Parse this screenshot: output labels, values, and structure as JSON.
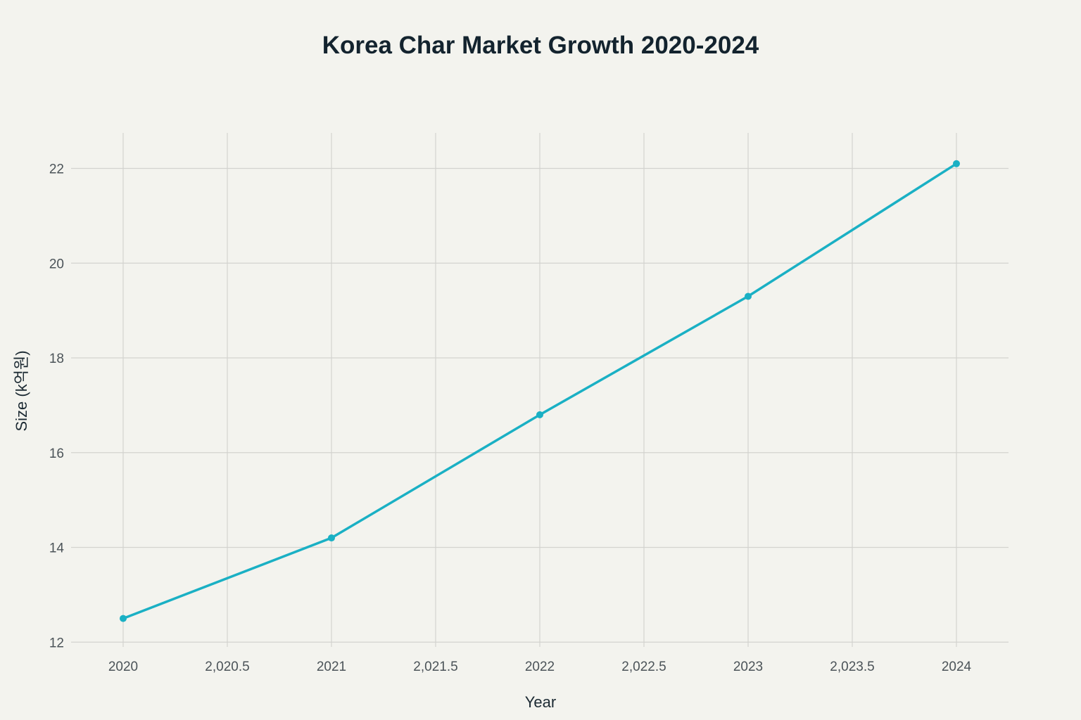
{
  "chart_data": {
    "type": "line",
    "title": "Korea Char Market Growth 2020-2024",
    "xlabel": "Year",
    "ylabel": "Size (k억원)",
    "xlim": [
      2019.75,
      2024.25
    ],
    "ylim": [
      11.9,
      22.75
    ],
    "x_ticks": [
      2020,
      2020.5,
      2021,
      2021.5,
      2022,
      2022.5,
      2023,
      2023.5,
      2024
    ],
    "x_tick_labels": [
      "2020",
      "2,020.5",
      "2021",
      "2,021.5",
      "2022",
      "2,022.5",
      "2023",
      "2,023.5",
      "2024"
    ],
    "y_ticks": [
      12,
      14,
      16,
      18,
      20,
      22
    ],
    "y_tick_labels": [
      "12",
      "14",
      "16",
      "18",
      "20",
      "22"
    ],
    "grid": true,
    "series": [
      {
        "color": "#1ab0c4",
        "x": [
          2020,
          2021,
          2022,
          2023,
          2024
        ],
        "y": [
          12.5,
          14.2,
          16.8,
          19.3,
          22.1
        ]
      }
    ]
  }
}
